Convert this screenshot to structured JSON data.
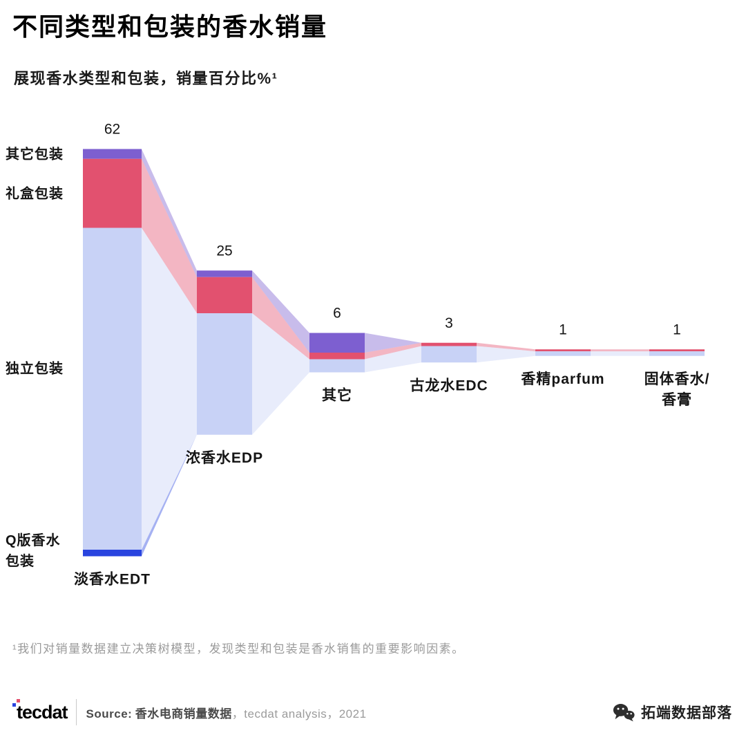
{
  "header": {
    "title": "不同类型和包装的香水销量",
    "subtitle": "展现香水类型和包装，销量百分比%¹"
  },
  "chart_data": {
    "type": "bar",
    "variant": "centered stacked bars with connecting flows (funnel / alluvial)",
    "unit": "% of sales",
    "legend_position": "left labels on first bar",
    "segments": [
      "其它包装",
      "礼盒包装",
      "独立包装",
      "Q版香水包装"
    ],
    "segment_colors": [
      "#7d5fd0",
      "#e2516f",
      "#c8d2f6",
      "#2944df"
    ],
    "flow_opacity": 0.42,
    "categories": [
      {
        "label": "淡香水EDT",
        "total": 62,
        "values": [
          1.5,
          10.5,
          49,
          1
        ]
      },
      {
        "label": "浓香水EDP",
        "total": 25,
        "values": [
          1,
          5.5,
          18.5,
          0
        ]
      },
      {
        "label": "其它",
        "total": 6,
        "values": [
          3,
          1,
          2,
          0
        ]
      },
      {
        "label": "古龙水EDC",
        "total": 3,
        "values": [
          0,
          0.5,
          2.5,
          0
        ]
      },
      {
        "label": "香精parfum",
        "total": 1,
        "values": [
          0,
          0.3,
          0.7,
          0
        ]
      },
      {
        "label": "固体香水/香膏",
        "total": 1,
        "values": [
          0,
          0.3,
          0.7,
          0
        ]
      }
    ]
  },
  "footnote": "¹我们对销量数据建立决策树模型，发现类型和包装是香水销售的重要影响因素。",
  "footer": {
    "logo": "tecdat",
    "source_label": "Source:",
    "source_dataset": "香水电商销量数据",
    "source_rest": "，tecdat analysis，2021",
    "wechat_account": "拓端数据部落"
  }
}
